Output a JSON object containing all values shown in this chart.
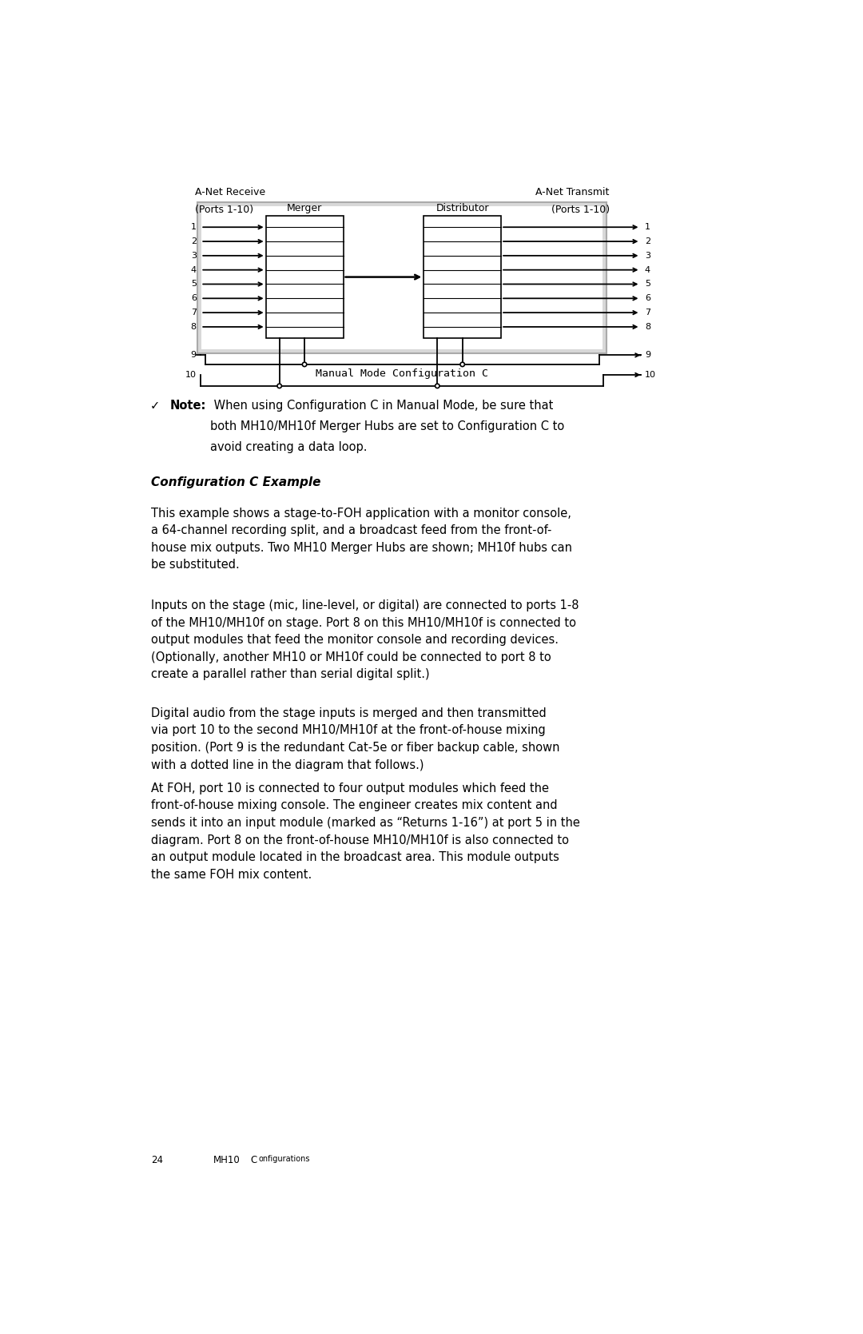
{
  "page_bg": "#ffffff",
  "diagram_caption": "Manual Mode Configuration C",
  "note_bullet": "✓",
  "note_title": "Note:",
  "note_body_line1": " When using Configuration C in Manual Mode, be sure that",
  "note_body_line2": "both MH10/MH10f Merger Hubs are set to Configuration C to",
  "note_body_line3": "avoid creating a data loop.",
  "section_title": "Configuration C Example",
  "para1": "This example shows a stage-to-FOH application with a monitor console,\na 64-channel recording split, and a broadcast feed from the front-of-\nhouse mix outputs. Two MH10 Merger Hubs are shown; MH10f hubs can\nbe substituted.",
  "para2": "Inputs on the stage (mic, line-level, or digital) are connected to ports 1-8\nof the MH10/MH10f on stage. Port 8 on this MH10/MH10f is connected to\noutput modules that feed the monitor console and recording devices.\n(Optionally, another MH10 or MH10f could be connected to port 8 to\ncreate a parallel rather than serial digital split.)",
  "para3": "Digital audio from the stage inputs is merged and then transmitted\nvia port 10 to the second MH10/MH10f at the front-of-house mixing\nposition. (Port 9 is the redundant Cat-5e or fiber backup cable, shown\nwith a dotted line in the diagram that follows.)",
  "para4": "At FOH, port 10 is connected to four output modules which feed the\nfront-of-house mixing console. The engineer creates mix content and\nsends it into an input module (marked as “Returns 1-16”) at port 5 in the\ndiagram. Port 8 on the front-of-house MH10/MH10f is also connected to\nan output module located in the broadcast area. This module outputs\nthe same FOH mix content.",
  "footer_page": "24",
  "footer_text": "MH10 Configurations",
  "anet_receive_label1": "A-Net Receive",
  "anet_receive_label2": "(Ports 1-10)",
  "anet_transmit_label1": "A-Net Transmit",
  "anet_transmit_label2": "(Ports 1-10)",
  "merger_label": "Merger",
  "distributor_label": "Distributor"
}
